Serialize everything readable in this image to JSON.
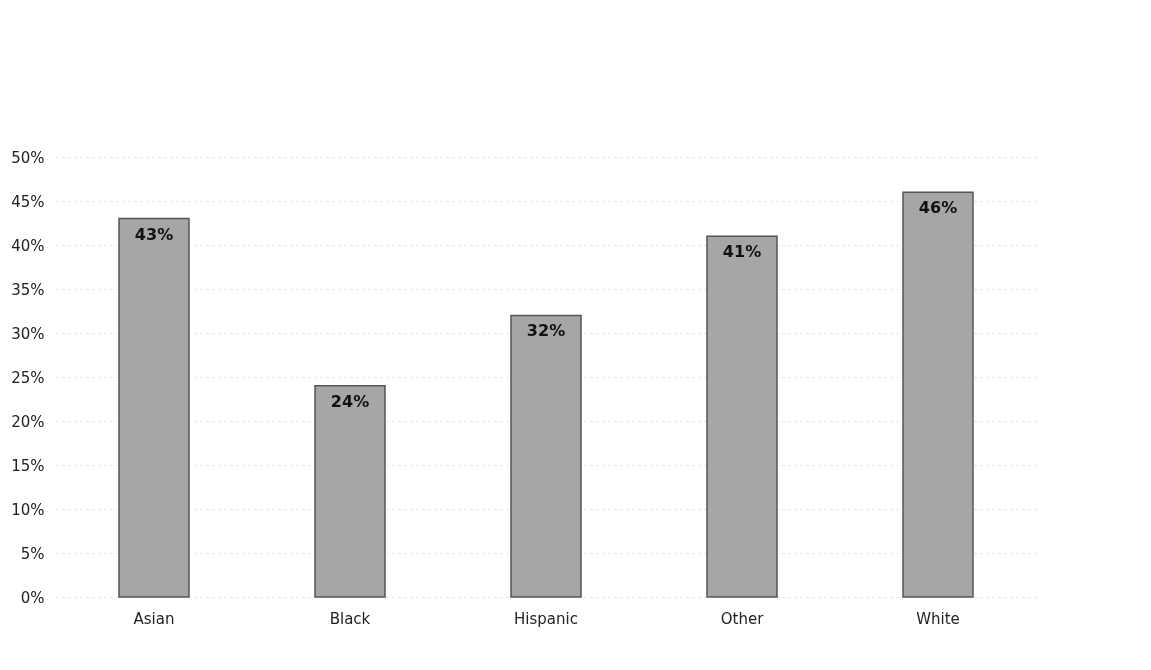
{
  "chart_data": {
    "type": "bar",
    "categories": [
      "Asian",
      "Black",
      "Hispanic",
      "Other",
      "White"
    ],
    "values": [
      43,
      24,
      32,
      41,
      46
    ],
    "color": "#a6a6a6",
    "value_labels": [
      "43%",
      "24%",
      "32%",
      "41%",
      "46%"
    ],
    "ylim": [
      0,
      50
    ],
    "yticks": [
      {
        "value": 0,
        "label": "0%"
      },
      {
        "value": 5,
        "label": "5%"
      },
      {
        "value": 10,
        "label": "10%"
      },
      {
        "value": 15,
        "label": "15%"
      },
      {
        "value": 20,
        "label": "20%"
      },
      {
        "value": 25,
        "label": "25%"
      },
      {
        "value": 30,
        "label": "30%"
      },
      {
        "value": 35,
        "label": "35%"
      },
      {
        "value": 40,
        "label": "40%"
      },
      {
        "value": 45,
        "label": "45%"
      },
      {
        "value": 50,
        "label": "50%"
      }
    ],
    "grid": "y"
  }
}
